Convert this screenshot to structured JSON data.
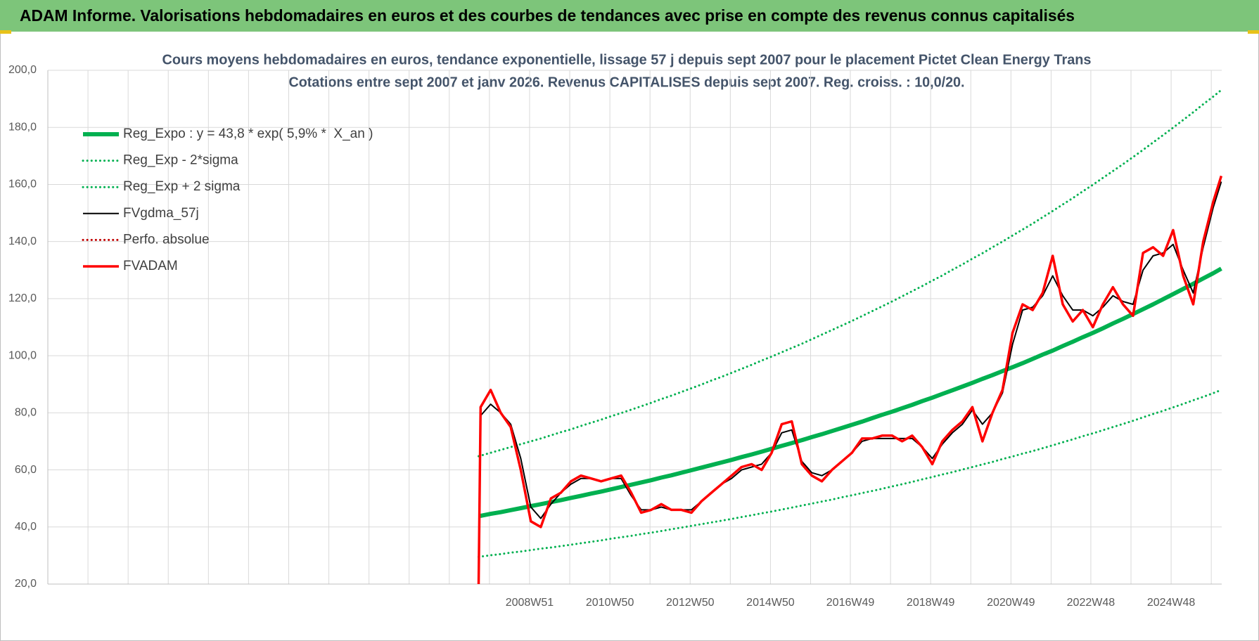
{
  "header": {
    "title": "ADAM Informe. Valorisations hebdomadaires en euros et des courbes de tendances avec prise en compte des revenus connus capitalisés"
  },
  "chart_data": {
    "type": "line",
    "title": "Cours moyens hebdomadaires en euros, tendance exponentielle, lissage 57 j depuis sept 2007 pour le placement Pictet Clean Energy Trans",
    "subtitle": "Cotations entre sept 2007 et janv 2026. Revenus CAPITALISES depuis sept 2007. Reg. croiss. : 10,0/20.",
    "x": [
      2007.7,
      2007.75,
      2008,
      2008.25,
      2008.5,
      2008.75,
      2009,
      2009.25,
      2009.5,
      2009.75,
      2010,
      2010.25,
      2010.5,
      2010.75,
      2011,
      2011.25,
      2011.5,
      2011.75,
      2012,
      2012.25,
      2012.5,
      2012.75,
      2013,
      2013.25,
      2013.5,
      2013.75,
      2014,
      2014.25,
      2014.5,
      2014.75,
      2015,
      2015.25,
      2015.5,
      2015.75,
      2016,
      2016.25,
      2016.5,
      2016.75,
      2017,
      2017.25,
      2017.5,
      2017.75,
      2018,
      2018.25,
      2018.5,
      2018.75,
      2019,
      2019.25,
      2019.5,
      2019.75,
      2020,
      2020.25,
      2020.5,
      2020.75,
      2021,
      2021.25,
      2021.5,
      2021.75,
      2022,
      2022.25,
      2022.5,
      2022.75,
      2023,
      2023.25,
      2023.5,
      2023.75,
      2024,
      2024.25,
      2024.5,
      2024.75,
      2025,
      2025.25,
      2025.5,
      2025.75,
      2026,
      2026.2
    ],
    "xlim": [
      1996.97,
      2026.21
    ],
    "xticks": [
      {
        "value": 2008.97,
        "label": "2008W51"
      },
      {
        "value": 2010.97,
        "label": "2010W50"
      },
      {
        "value": 2012.97,
        "label": "2012W50"
      },
      {
        "value": 2014.97,
        "label": "2014W50"
      },
      {
        "value": 2016.96,
        "label": "2016W49"
      },
      {
        "value": 2018.96,
        "label": "2018W49"
      },
      {
        "value": 2020.96,
        "label": "2020W49"
      },
      {
        "value": 2022.95,
        "label": "2022W48"
      },
      {
        "value": 2024.95,
        "label": "2024W48"
      }
    ],
    "ylim": [
      20,
      200
    ],
    "yticks": [
      {
        "value": 20,
        "label": "20,0"
      },
      {
        "value": 40,
        "label": "40,0"
      },
      {
        "value": 60,
        "label": "60,0"
      },
      {
        "value": 80,
        "label": "80,0"
      },
      {
        "value": 100,
        "label": "100,0"
      },
      {
        "value": 120,
        "label": "120,0"
      },
      {
        "value": 140,
        "label": "140,0"
      },
      {
        "value": 160,
        "label": "160,0"
      },
      {
        "value": 180,
        "label": "180,0"
      },
      {
        "value": 200,
        "label": "200,0"
      }
    ],
    "grid": true,
    "legend": "upper left",
    "series": [
      {
        "name": "Reg_Expo : y = 43,8 * exp( 5,9% *  X_an )",
        "color": "#00b050",
        "linestyle": "solid",
        "values": [
          43.8,
          43.9,
          44.6,
          45.2,
          45.9,
          46.6,
          47.3,
          48.0,
          48.7,
          49.4,
          50.2,
          50.9,
          51.7,
          52.4,
          53.2,
          54.0,
          54.8,
          55.6,
          56.4,
          57.3,
          58.1,
          59.0,
          59.9,
          60.8,
          61.7,
          62.6,
          63.5,
          64.5,
          65.4,
          66.4,
          67.4,
          68.4,
          69.4,
          70.4,
          71.5,
          72.5,
          73.6,
          74.7,
          75.8,
          76.9,
          78.1,
          79.3,
          80.4,
          81.6,
          82.8,
          84.1,
          85.3,
          86.6,
          87.9,
          89.2,
          90.5,
          91.9,
          93.2,
          94.6,
          96.0,
          97.4,
          98.9,
          100.4,
          101.8,
          103.4,
          104.9,
          106.5,
          108.0,
          109.6,
          111.3,
          112.9,
          114.6,
          116.3,
          118.0,
          119.8,
          121.6,
          123.4,
          125.2,
          127.1,
          128.9,
          130.5
        ]
      },
      {
        "name": "Reg_Exp - 2*sigma",
        "color": "#00b050",
        "linestyle": "dotted",
        "values": [
          29.5,
          29.6,
          30.1,
          30.5,
          31.0,
          31.4,
          31.9,
          32.4,
          32.8,
          33.3,
          33.8,
          34.3,
          34.8,
          35.3,
          35.9,
          36.4,
          36.9,
          37.5,
          38.0,
          38.6,
          39.2,
          39.8,
          40.4,
          41.0,
          41.6,
          42.2,
          42.8,
          43.5,
          44.1,
          44.8,
          45.4,
          46.1,
          46.8,
          47.5,
          48.2,
          48.9,
          49.6,
          50.4,
          51.1,
          51.9,
          52.6,
          53.4,
          54.2,
          55.0,
          55.8,
          56.7,
          57.5,
          58.4,
          59.2,
          60.1,
          61.0,
          61.9,
          62.8,
          63.8,
          64.7,
          65.7,
          66.6,
          67.6,
          68.6,
          69.7,
          70.7,
          71.8,
          72.8,
          73.9,
          75.0,
          76.1,
          77.2,
          78.4,
          79.6,
          80.7,
          81.9,
          83.1,
          84.4,
          85.6,
          86.9,
          88.0
        ]
      },
      {
        "name": "Reg_Exp + 2 sigma",
        "color": "#00b050",
        "linestyle": "dotted",
        "values": [
          64.8,
          65.0,
          66.0,
          67.0,
          68.0,
          69.0,
          70.0,
          71.0,
          72.1,
          73.2,
          74.2,
          75.4,
          76.5,
          77.6,
          78.8,
          79.9,
          81.1,
          82.3,
          83.5,
          84.8,
          86.0,
          87.3,
          88.6,
          89.9,
          91.3,
          92.6,
          94.0,
          95.4,
          96.8,
          98.3,
          99.7,
          101.2,
          102.7,
          104.2,
          105.8,
          107.4,
          109.0,
          110.6,
          112.2,
          113.9,
          115.6,
          117.3,
          119.0,
          120.8,
          122.6,
          124.4,
          126.3,
          128.1,
          130.1,
          132.0,
          134.0,
          135.9,
          138.0,
          140.0,
          142.1,
          144.2,
          146.3,
          148.5,
          150.7,
          153.0,
          155.2,
          157.6,
          159.9,
          162.3,
          164.7,
          167.1,
          169.6,
          172.1,
          174.7,
          177.3,
          179.9,
          182.6,
          185.3,
          188.1,
          190.8,
          193.1
        ]
      },
      {
        "name": "FVgdma_57j",
        "color": "#000000",
        "linestyle": "solid",
        "values": [
          null,
          79,
          83,
          80,
          76,
          64,
          47,
          43,
          48,
          52,
          55,
          57,
          57,
          56,
          57,
          57,
          51,
          46,
          46,
          47,
          46,
          46,
          46,
          49,
          52,
          55,
          57,
          60,
          61,
          62,
          66,
          73,
          74,
          63,
          59,
          58,
          60,
          63,
          66,
          70,
          71,
          71,
          71,
          71,
          71,
          68,
          64,
          69,
          73,
          76,
          81,
          76,
          80,
          87,
          104,
          116,
          117,
          121,
          128,
          121,
          116,
          116,
          114,
          117,
          121,
          119,
          118,
          130,
          135,
          136,
          139,
          130,
          122,
          138,
          152,
          161
        ]
      },
      {
        "name": "Perfo. absolue",
        "color": "#c00000",
        "linestyle": "dotted",
        "values": [
          null,
          null,
          null,
          null,
          null,
          null,
          null,
          null,
          null,
          null,
          null,
          null,
          null,
          null,
          null,
          null,
          null,
          null,
          null,
          null,
          null,
          null,
          null,
          null,
          null,
          null,
          null,
          null,
          null,
          null,
          null,
          null,
          null,
          null,
          null,
          null,
          null,
          null,
          null,
          null,
          null,
          null,
          null,
          null,
          null,
          null,
          null,
          null,
          null,
          null,
          null,
          null,
          null,
          null,
          null,
          null,
          null,
          null,
          null,
          null,
          null,
          null,
          null,
          null,
          null,
          null,
          null,
          null,
          null,
          null,
          null,
          null,
          null,
          null,
          null,
          null
        ]
      },
      {
        "name": "FVADAM",
        "color": "#ff0000",
        "linestyle": "solid",
        "values": [
          20,
          82,
          88,
          80,
          75,
          60,
          42,
          40,
          50,
          52,
          56,
          58,
          57,
          56,
          57,
          58,
          52,
          45,
          46,
          48,
          46,
          46,
          45,
          49,
          52,
          55,
          58,
          61,
          62,
          60,
          66,
          76,
          77,
          62,
          58,
          56,
          60,
          63,
          66,
          71,
          71,
          72,
          72,
          70,
          72,
          68,
          62,
          70,
          74,
          77,
          82,
          70,
          80,
          88,
          108,
          118,
          116,
          122,
          135,
          118,
          112,
          116,
          110,
          118,
          124,
          118,
          114,
          136,
          138,
          135,
          144,
          128,
          118,
          140,
          154,
          163
        ]
      }
    ]
  }
}
